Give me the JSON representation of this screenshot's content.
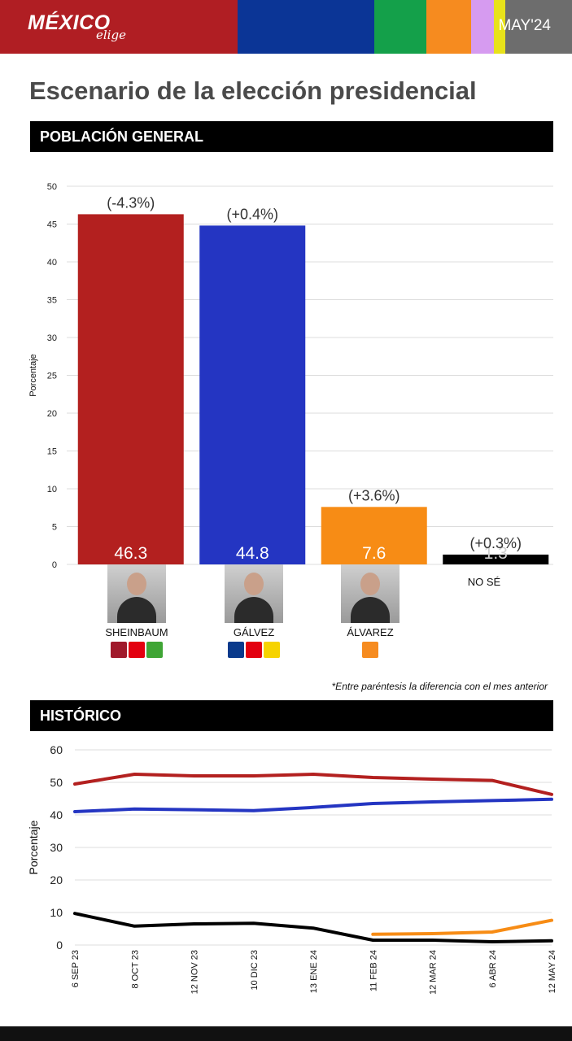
{
  "header": {
    "logo_main": "MÉXICO",
    "logo_sub": "elige",
    "date": "MAY'24",
    "strip_colors": [
      "#b01e23",
      "#0b3596",
      "#14a04a",
      "#f68b1f",
      "#d69bf0",
      "#e8e21a",
      "#6d6d6d"
    ]
  },
  "title": "Escenario de la elección presidencial",
  "section_general": "POBLACIÓN GENERAL",
  "section_historic": "HISTÓRICO",
  "footnote": "*Entre paréntesis la diferencia con el mes anterior",
  "candidates": [
    {
      "name": "SHEINBAUM",
      "party_colors": [
        "#a0192b",
        "#e3000f",
        "#3fa535"
      ]
    },
    {
      "name": "GÁLVEZ",
      "party_colors": [
        "#0a3a8c",
        "#e3000f",
        "#f6d300"
      ]
    },
    {
      "name": "ÁLVAREZ",
      "party_colors": [
        "#f68b1f"
      ]
    },
    {
      "name": "NO SÉ",
      "party_colors": []
    }
  ],
  "chart_data": [
    {
      "type": "bar",
      "categories": [
        "SHEINBAUM",
        "GÁLVEZ",
        "ÁLVAREZ",
        "NO SÉ"
      ],
      "values": [
        46.3,
        44.8,
        7.6,
        1.3
      ],
      "value_labels": [
        "46.3",
        "44.8",
        "7.6",
        "1.3"
      ],
      "change_labels": [
        "(-4.3%)",
        "(+0.4%)",
        "(+3.6%)",
        "(+0.3%)"
      ],
      "colors": [
        "#b3201f",
        "#2435c2",
        "#f78c15",
        "#000000"
      ],
      "ylabel": "Porcentaje",
      "ylim": [
        0,
        50
      ],
      "yticks": [
        0,
        5,
        10,
        15,
        20,
        25,
        30,
        35,
        40,
        45,
        50
      ],
      "grid": true
    },
    {
      "type": "line",
      "x": [
        "6 SEP 23",
        "8 OCT 23",
        "12 NOV 23",
        "10 DIC 23",
        "13 ENE 24",
        "11 FEB 24",
        "12 MAR 24",
        "6 ABR 24",
        "12 MAY 24"
      ],
      "series": [
        {
          "color": "#b3201f",
          "values": [
            49.5,
            52.5,
            52.0,
            52.0,
            52.5,
            51.5,
            51.0,
            50.6,
            46.3
          ]
        },
        {
          "color": "#2435c2",
          "values": [
            41.0,
            41.8,
            41.6,
            41.3,
            42.3,
            43.5,
            44.0,
            44.4,
            44.8
          ]
        },
        {
          "color": "#f78c15",
          "values": [
            null,
            null,
            null,
            null,
            null,
            3.3,
            3.5,
            4.0,
            7.6
          ]
        },
        {
          "color": "#000000",
          "values": [
            9.7,
            5.8,
            6.5,
            6.7,
            5.2,
            1.5,
            1.5,
            1.0,
            1.3
          ]
        }
      ],
      "ylabel": "Porcentaje",
      "ylim": [
        0,
        60
      ],
      "yticks": [
        0,
        10,
        20,
        30,
        40,
        50,
        60
      ],
      "grid": true
    }
  ]
}
